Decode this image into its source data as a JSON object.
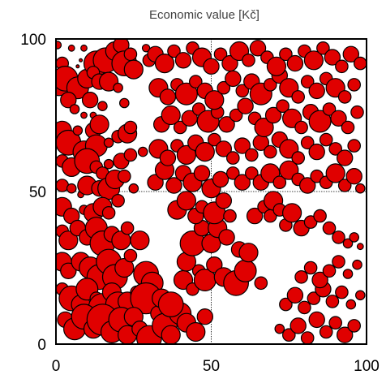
{
  "chart_data": {
    "type": "scatter",
    "title": "Economic value [Kč]",
    "xlabel": "",
    "ylabel": "",
    "xlim": [
      0,
      100
    ],
    "ylim": [
      0,
      100
    ],
    "xticks": [
      "0",
      "50",
      "100"
    ],
    "yticks": [
      "0",
      "50",
      "100"
    ],
    "grid": "dotted lines at 50",
    "marker_color": "#e00000",
    "marker_edge": "#000000",
    "points": [
      [
        0.5,
        98,
        1.2
      ],
      [
        1,
        85,
        3.5
      ],
      [
        2,
        92,
        2
      ],
      [
        3,
        87,
        4
      ],
      [
        5,
        97,
        1
      ],
      [
        7,
        84,
        3.5
      ],
      [
        10,
        87,
        3
      ],
      [
        9,
        97,
        1
      ],
      [
        8,
        93,
        0.5
      ],
      [
        7,
        91,
        0.5
      ],
      [
        13,
        92,
        4
      ],
      [
        16,
        93,
        4
      ],
      [
        19,
        96,
        3
      ],
      [
        21,
        98,
        2.5
      ],
      [
        22,
        92,
        4
      ],
      [
        24,
        95,
        2
      ],
      [
        25,
        90,
        3
      ],
      [
        29,
        97,
        1.2
      ],
      [
        30,
        93,
        2
      ],
      [
        12,
        89,
        2
      ],
      [
        14,
        86,
        2.5
      ],
      [
        17,
        86,
        3
      ],
      [
        20,
        84,
        1.5
      ],
      [
        4,
        80,
        2.5
      ],
      [
        6,
        77,
        1.5
      ],
      [
        11,
        80,
        2.5
      ],
      [
        9,
        75,
        1
      ],
      [
        12,
        75,
        1
      ],
      [
        15,
        78,
        1.5
      ],
      [
        22,
        79,
        1.5
      ],
      [
        2,
        70,
        3
      ],
      [
        4,
        66,
        4
      ],
      [
        7,
        70,
        1.5
      ],
      [
        9,
        63,
        3.5
      ],
      [
        12,
        70,
        2.5
      ],
      [
        13,
        65,
        3.5
      ],
      [
        14,
        72,
        3
      ],
      [
        17,
        66,
        1.5
      ],
      [
        20,
        68,
        2
      ],
      [
        23,
        69,
        3
      ],
      [
        24,
        71,
        2
      ],
      [
        2,
        60,
        2
      ],
      [
        5,
        58,
        3
      ],
      [
        10,
        60,
        4
      ],
      [
        13,
        58,
        2
      ],
      [
        15,
        56,
        2
      ],
      [
        17,
        59,
        1.5
      ],
      [
        21,
        60,
        2.5
      ],
      [
        24,
        62,
        2
      ],
      [
        28,
        63,
        1.5
      ],
      [
        2,
        52,
        2
      ],
      [
        5,
        51,
        1.5
      ],
      [
        8,
        49,
        1
      ],
      [
        10,
        52,
        3
      ],
      [
        14,
        51,
        2.5
      ],
      [
        17,
        51,
        3.5
      ],
      [
        19,
        54,
        3
      ],
      [
        22,
        55,
        2
      ],
      [
        25,
        51,
        1.5
      ],
      [
        2,
        45,
        3
      ],
      [
        5,
        42,
        2.5
      ],
      [
        9,
        44,
        1.5
      ],
      [
        12,
        43,
        3
      ],
      [
        15,
        45,
        3
      ],
      [
        17,
        43,
        2
      ],
      [
        20,
        47,
        2
      ],
      [
        2,
        37,
        2
      ],
      [
        4,
        34,
        3
      ],
      [
        7,
        38,
        2.5
      ],
      [
        10,
        35,
        2.5
      ],
      [
        13,
        38,
        3.5
      ],
      [
        15,
        33,
        4
      ],
      [
        18,
        36,
        2.5
      ],
      [
        21,
        34,
        3
      ],
      [
        23,
        38,
        2
      ],
      [
        27,
        34,
        3
      ],
      [
        2,
        27,
        3
      ],
      [
        4,
        24,
        2.5
      ],
      [
        8,
        27,
        3
      ],
      [
        11,
        25,
        3.5
      ],
      [
        14,
        22,
        4
      ],
      [
        17,
        27,
        4
      ],
      [
        19,
        22,
        4
      ],
      [
        22,
        25,
        3
      ],
      [
        24,
        29,
        2
      ],
      [
        29,
        23,
        4
      ],
      [
        31,
        20,
        3.5
      ],
      [
        2,
        18,
        2
      ],
      [
        5,
        15,
        4
      ],
      [
        8,
        13,
        3
      ],
      [
        10,
        18,
        3.5
      ],
      [
        13,
        15,
        2
      ],
      [
        15,
        12,
        4.5
      ],
      [
        18,
        17,
        3
      ],
      [
        20,
        13,
        4
      ],
      [
        23,
        14,
        3
      ],
      [
        26,
        17,
        2
      ],
      [
        29,
        15,
        5
      ],
      [
        3,
        8,
        2.5
      ],
      [
        6,
        5,
        3.5
      ],
      [
        9,
        9,
        4
      ],
      [
        12,
        5,
        3
      ],
      [
        15,
        8,
        5
      ],
      [
        18,
        4,
        3.5
      ],
      [
        21,
        8,
        4
      ],
      [
        23,
        3,
        3
      ],
      [
        25,
        9,
        3
      ],
      [
        27,
        5,
        2.5
      ],
      [
        30,
        2,
        4
      ],
      [
        33,
        10,
        2.5
      ],
      [
        35,
        6,
        4
      ],
      [
        37,
        3,
        3
      ],
      [
        40,
        10,
        3.5
      ],
      [
        42,
        7,
        3
      ],
      [
        45,
        4,
        3
      ],
      [
        48,
        9,
        2.5
      ],
      [
        34,
        15,
        3
      ],
      [
        37,
        13,
        4
      ],
      [
        41,
        21,
        3
      ],
      [
        44,
        18,
        2
      ],
      [
        46,
        24,
        2
      ],
      [
        48,
        21,
        3.5
      ],
      [
        51,
        26,
        2.5
      ],
      [
        54,
        22,
        3
      ],
      [
        58,
        20,
        4
      ],
      [
        61,
        24,
        3.5
      ],
      [
        66,
        20,
        2
      ],
      [
        42,
        27,
        3
      ],
      [
        44,
        33,
        4
      ],
      [
        47,
        38,
        2.5
      ],
      [
        50,
        33,
        3
      ],
      [
        52,
        38,
        3
      ],
      [
        55,
        35,
        2.5
      ],
      [
        59,
        31,
        2.5
      ],
      [
        62,
        30,
        3
      ],
      [
        39,
        44,
        3
      ],
      [
        42,
        47,
        3
      ],
      [
        45,
        42,
        2.5
      ],
      [
        47,
        45,
        2
      ],
      [
        51,
        43,
        3.5
      ],
      [
        54,
        47,
        2.5
      ],
      [
        56,
        42,
        2
      ],
      [
        64,
        42,
        2.5
      ],
      [
        67,
        45,
        2
      ],
      [
        69,
        42,
        2
      ],
      [
        70,
        47,
        3
      ],
      [
        72,
        44,
        2
      ],
      [
        74,
        39,
        2
      ],
      [
        76,
        43,
        3
      ],
      [
        79,
        38,
        2.5
      ],
      [
        82,
        40,
        2
      ],
      [
        85,
        42,
        2
      ],
      [
        88,
        38,
        2
      ],
      [
        91,
        35,
        2
      ],
      [
        94,
        33,
        1.5
      ],
      [
        96,
        35,
        1.5
      ],
      [
        98,
        32,
        1
      ],
      [
        32,
        53,
        2.5
      ],
      [
        35,
        57,
        3
      ],
      [
        38,
        52,
        2.5
      ],
      [
        41,
        56,
        2.5
      ],
      [
        44,
        53,
        3
      ],
      [
        47,
        56,
        2.5
      ],
      [
        50,
        51,
        3
      ],
      [
        53,
        54,
        2.5
      ],
      [
        57,
        56,
        2
      ],
      [
        60,
        53,
        2.5
      ],
      [
        63,
        56,
        2
      ],
      [
        66,
        53,
        2.5
      ],
      [
        69,
        56,
        3
      ],
      [
        72,
        53,
        2
      ],
      [
        75,
        57,
        3
      ],
      [
        78,
        54,
        2
      ],
      [
        81,
        52,
        2.5
      ],
      [
        84,
        55,
        2
      ],
      [
        87,
        53,
        2
      ],
      [
        90,
        56,
        3
      ],
      [
        93,
        52,
        2
      ],
      [
        96,
        55,
        2.5
      ],
      [
        98,
        51,
        1.5
      ],
      [
        33,
        64,
        3
      ],
      [
        36,
        61,
        2.5
      ],
      [
        39,
        65,
        2
      ],
      [
        42,
        62,
        3
      ],
      [
        45,
        66,
        2.5
      ],
      [
        48,
        63,
        3
      ],
      [
        51,
        67,
        2
      ],
      [
        54,
        64,
        2.5
      ],
      [
        57,
        61,
        2
      ],
      [
        60,
        65,
        2.5
      ],
      [
        63,
        62,
        2
      ],
      [
        66,
        66,
        2.5
      ],
      [
        69,
        63,
        2
      ],
      [
        72,
        67,
        2.5
      ],
      [
        75,
        64,
        3
      ],
      [
        78,
        61,
        2
      ],
      [
        81,
        66,
        2
      ],
      [
        84,
        63,
        2.5
      ],
      [
        87,
        67,
        2
      ],
      [
        90,
        64,
        2
      ],
      [
        93,
        61,
        2.5
      ],
      [
        96,
        65,
        2
      ],
      [
        34,
        72,
        2.5
      ],
      [
        37,
        75,
        3
      ],
      [
        40,
        71,
        2
      ],
      [
        43,
        74,
        2.5
      ],
      [
        46,
        77,
        2
      ],
      [
        49,
        73,
        3.5
      ],
      [
        52,
        76,
        2
      ],
      [
        55,
        72,
        2.5
      ],
      [
        58,
        75,
        2
      ],
      [
        61,
        78,
        2.5
      ],
      [
        64,
        74,
        2
      ],
      [
        67,
        71,
        3
      ],
      [
        70,
        75,
        2.5
      ],
      [
        73,
        78,
        2
      ],
      [
        76,
        74,
        3
      ],
      [
        79,
        71,
        2
      ],
      [
        82,
        76,
        2.5
      ],
      [
        85,
        73,
        3.5
      ],
      [
        88,
        77,
        2
      ],
      [
        91,
        74,
        2.5
      ],
      [
        94,
        71,
        2
      ],
      [
        97,
        76,
        2
      ],
      [
        33,
        84,
        3
      ],
      [
        36,
        81,
        2.5
      ],
      [
        39,
        85,
        2
      ],
      [
        42,
        82,
        3.5
      ],
      [
        45,
        86,
        2
      ],
      [
        48,
        83,
        2.5
      ],
      [
        51,
        80,
        3
      ],
      [
        54,
        84,
        2
      ],
      [
        57,
        87,
        2.5
      ],
      [
        60,
        83,
        2
      ],
      [
        63,
        86,
        2.5
      ],
      [
        66,
        82,
        3.5
      ],
      [
        69,
        85,
        2
      ],
      [
        72,
        88,
        2.5
      ],
      [
        75,
        84,
        3
      ],
      [
        78,
        81,
        2
      ],
      [
        81,
        86,
        2
      ],
      [
        84,
        83,
        2.5
      ],
      [
        87,
        87,
        2
      ],
      [
        90,
        84,
        3
      ],
      [
        93,
        81,
        2
      ],
      [
        96,
        85,
        2
      ],
      [
        32,
        95,
        2.5
      ],
      [
        35,
        92,
        3
      ],
      [
        38,
        96,
        2
      ],
      [
        41,
        93,
        2.5
      ],
      [
        44,
        97,
        2
      ],
      [
        47,
        94,
        3
      ],
      [
        50,
        91,
        2.5
      ],
      [
        53,
        95,
        2
      ],
      [
        56,
        92,
        2.5
      ],
      [
        59,
        96,
        3
      ],
      [
        62,
        93,
        2
      ],
      [
        65,
        97,
        2.5
      ],
      [
        68,
        94,
        2
      ],
      [
        71,
        91,
        3
      ],
      [
        74,
        95,
        2
      ],
      [
        77,
        92,
        2.5
      ],
      [
        80,
        96,
        2
      ],
      [
        83,
        93,
        3
      ],
      [
        86,
        97,
        2
      ],
      [
        89,
        94,
        2.5
      ],
      [
        92,
        91,
        2
      ],
      [
        95,
        95,
        2.5
      ],
      [
        98,
        92,
        2
      ],
      [
        72,
        5,
        1.5
      ],
      [
        75,
        3,
        2
      ],
      [
        78,
        6,
        2.5
      ],
      [
        81,
        2,
        2
      ],
      [
        84,
        8,
        2.5
      ],
      [
        87,
        4,
        2
      ],
      [
        90,
        7,
        2
      ],
      [
        93,
        3,
        2.5
      ],
      [
        96,
        6,
        2
      ],
      [
        74,
        13,
        2
      ],
      [
        77,
        16,
        2.5
      ],
      [
        80,
        12,
        2
      ],
      [
        83,
        15,
        2
      ],
      [
        86,
        18,
        2.5
      ],
      [
        89,
        14,
        2
      ],
      [
        92,
        17,
        2
      ],
      [
        95,
        13,
        1.5
      ],
      [
        98,
        16,
        1.5
      ],
      [
        79,
        22,
        2
      ],
      [
        82,
        25,
        2
      ],
      [
        85,
        21,
        2.5
      ],
      [
        88,
        24,
        2
      ],
      [
        91,
        27,
        2
      ],
      [
        94,
        23,
        1.5
      ],
      [
        97,
        26,
        1.5
      ]
    ]
  }
}
